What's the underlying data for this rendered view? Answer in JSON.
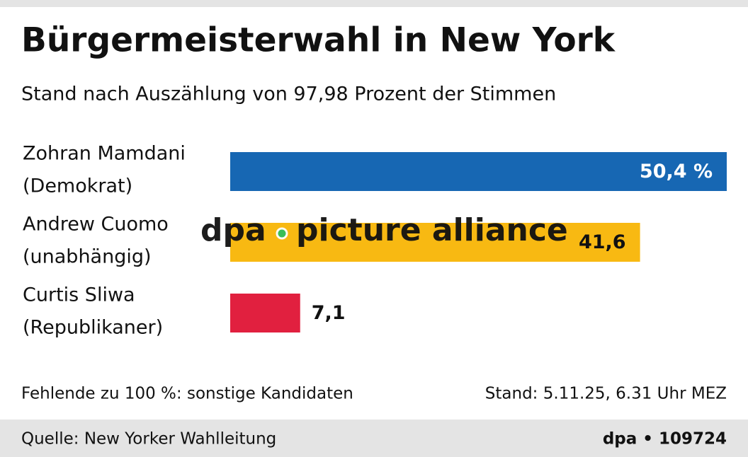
{
  "chart_data": {
    "type": "hbar",
    "title": "Bürgermeisterwahl in New York",
    "subtitle": "Stand nach Auszählung von 97,98 Prozent der Stimmen",
    "categories": [
      [
        "Zohran Mamdani",
        "(Demokrat)"
      ],
      [
        "Andrew Cuomo",
        "(unabhängig)"
      ],
      [
        "Curtis Sliwa",
        "(Republikaner)"
      ]
    ],
    "values": [
      50.4,
      41.6,
      7.1
    ],
    "value_labels": [
      "50,4 %",
      "41,6",
      "7,1"
    ],
    "colors": [
      "#1767b3",
      "#f8b912",
      "#e1203f"
    ],
    "value_label_colors": [
      "#ffffff",
      "#111111",
      "#111111"
    ],
    "watermark": [
      "dpa",
      "picture alliance"
    ],
    "note": "Fehlende zu 100 %: sonstige Kandidaten",
    "date": "Stand: 5.11.25, 6.31 Uhr MEZ",
    "source": "Quelle: New Yorker Wahlleitung",
    "credit": "dpa • 109724"
  }
}
